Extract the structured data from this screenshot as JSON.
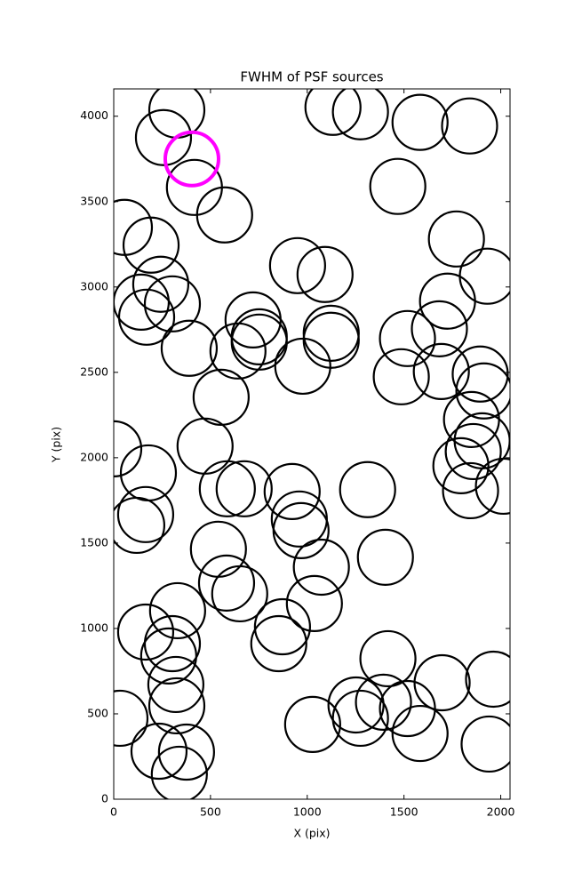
{
  "chart_data": {
    "type": "scatter",
    "title": "FWHM of PSF sources",
    "x_label": "X (pix)",
    "y_label": "Y (pix)",
    "xlim": [
      0,
      2048
    ],
    "ylim": [
      0,
      4160
    ],
    "xticks": [
      0,
      500,
      1000,
      1500,
      2000
    ],
    "yticks": [
      0,
      500,
      1000,
      1500,
      2000,
      2500,
      3000,
      3500,
      4000
    ],
    "series": [
      {
        "color": "#000000",
        "x": [
          326,
          257,
          417,
          573,
          55,
          193,
          243,
          142,
          170,
          303,
          390,
          642,
          720,
          752,
          752,
          950,
          1092,
          1124,
          1124,
          977,
          555,
          472,
          179,
          0,
          165,
          119,
          587,
          674,
          922,
          959,
          968,
          1073,
          541,
          583,
          651,
          1037,
          330,
          165,
          303,
          284,
          321,
          326,
          32,
          234,
          376,
          339,
          872,
          853,
          1028,
          1252,
          1275,
          1394,
          1417,
          1518,
          1583,
          1697,
          1963,
          1940,
          1404,
          1312,
          1133,
          1275,
          1583,
          1839,
          1468,
          1771,
          1931,
          1725,
          1683,
          1518,
          1486,
          1693,
          1894,
          1913,
          1849,
          1904,
          1794,
          1858,
          1844,
          2014
        ],
        "y": [
          4036,
          3875,
          3583,
          3422,
          3349,
          3245,
          3016,
          2911,
          2823,
          2901,
          2641,
          2625,
          2807,
          2677,
          2708,
          3125,
          3073,
          2729,
          2688,
          2536,
          2354,
          2068,
          1911,
          2052,
          1667,
          1604,
          1818,
          1818,
          1802,
          1641,
          1573,
          1359,
          1464,
          1266,
          1203,
          1146,
          1104,
          979,
          911,
          839,
          672,
          547,
          474,
          281,
          276,
          146,
          1010,
          911,
          438,
          552,
          474,
          568,
          823,
          531,
          385,
          682,
          703,
          323,
          1417,
          1813,
          4052,
          4026,
          3964,
          3943,
          3589,
          3281,
          3063,
          2917,
          2755,
          2698,
          2474,
          2505,
          2490,
          2391,
          2224,
          2099,
          1953,
          2036,
          1807,
          1833
        ]
      },
      {
        "color": "#ff00ff",
        "x": [
          404
        ],
        "y": [
          3750
        ]
      }
    ]
  }
}
